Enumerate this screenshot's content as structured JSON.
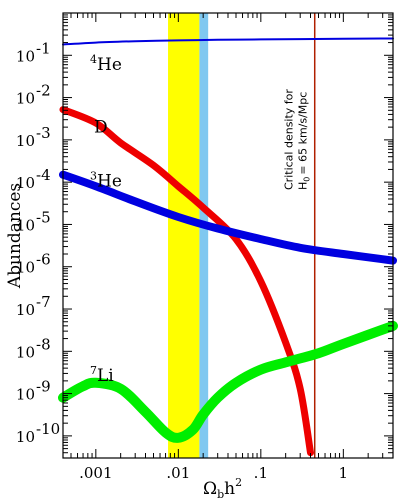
{
  "chart_data": {
    "type": "line",
    "x_scale": "log",
    "y_scale": "log",
    "xlim": [
      0.0004,
      4
    ],
    "ylim": [
      3e-11,
      1
    ],
    "xlabel": "Ω_b h²",
    "xlabel_main": "Ω",
    "xlabel_sub": "b",
    "xlabel_rest": "h",
    "xlabel_sup": "2",
    "ylabel": "Abundances",
    "xticks": [
      {
        "value": 0.001,
        "label": ".001"
      },
      {
        "value": 0.01,
        "label": ".01"
      },
      {
        "value": 0.1,
        "label": ".1"
      },
      {
        "value": 1,
        "label": "1"
      }
    ],
    "yticks": [
      {
        "value": 0.1,
        "base": "10",
        "exp": "-1"
      },
      {
        "value": 0.01,
        "base": "10",
        "exp": "-2"
      },
      {
        "value": 0.001,
        "base": "10",
        "exp": "-3"
      },
      {
        "value": 0.0001,
        "base": "10",
        "exp": "-4"
      },
      {
        "value": 1e-05,
        "base": "10",
        "exp": "-5"
      },
      {
        "value": 1e-06,
        "base": "10",
        "exp": "-6"
      },
      {
        "value": 1e-07,
        "base": "10",
        "exp": "-7"
      },
      {
        "value": 1e-08,
        "base": "10",
        "exp": "-8"
      },
      {
        "value": 1e-09,
        "base": "10",
        "exp": "-9"
      },
      {
        "value": 1e-10,
        "base": "10",
        "exp": "-10"
      }
    ],
    "bands": [
      {
        "x_range": [
          0.0075,
          0.018
        ],
        "color": "#ffff00"
      },
      {
        "x_range": [
          0.018,
          0.023
        ],
        "color": "#80c8f0"
      }
    ],
    "vline": {
      "x": 0.45,
      "color": "#b02000"
    },
    "annotation": {
      "line1": "Critical density for",
      "line2_main": "H",
      "line2_sub": "0",
      "line2_rest": "= 65 km/s/Mpc"
    },
    "series": [
      {
        "name": "He",
        "prefix": "4",
        "color": "#0000e0",
        "x": [
          0.0004,
          0.001,
          0.003,
          0.01,
          0.03,
          0.1,
          0.3,
          1,
          4
        ],
        "y": [
          0.18,
          0.2,
          0.215,
          0.225,
          0.232,
          0.237,
          0.241,
          0.246,
          0.25
        ]
      },
      {
        "name": "D",
        "prefix": "",
        "color": "#ee0000",
        "x": [
          0.0004,
          0.001,
          0.002,
          0.005,
          0.01,
          0.02,
          0.05,
          0.1,
          0.2,
          0.3,
          0.4
        ],
        "y": [
          0.0052,
          0.0025,
          0.00085,
          0.00025,
          8e-05,
          2.5e-05,
          4.5e-06,
          4.5e-07,
          1.6e-08,
          1.3e-09,
          4e-11
        ]
      },
      {
        "name": "He",
        "prefix": "3",
        "color": "#0000e0",
        "x": [
          0.0004,
          0.001,
          0.003,
          0.01,
          0.03,
          0.1,
          0.3,
          1,
          4
        ],
        "y": [
          0.00015,
          8e-05,
          3.5e-05,
          1.5e-05,
          8e-06,
          4.5e-06,
          2.8e-06,
          2e-06,
          1.4e-06
        ]
      },
      {
        "name": "Li",
        "prefix": "7",
        "color": "#00ee00",
        "x": [
          0.0004,
          0.0007,
          0.001,
          0.002,
          0.004,
          0.007,
          0.01,
          0.015,
          0.02,
          0.03,
          0.05,
          0.1,
          0.2,
          0.5,
          1,
          4
        ],
        "y": [
          8e-10,
          1.5e-09,
          1.8e-09,
          1.3e-09,
          3.7e-10,
          1.2e-10,
          9e-11,
          1.4e-10,
          3.2e-10,
          8e-10,
          1.8e-09,
          3.7e-09,
          5.5e-09,
          9e-09,
          1.5e-08,
          4e-08
        ]
      }
    ],
    "series_label_positions": [
      {
        "series": 0,
        "x": 0.00085,
        "y": 0.045
      },
      {
        "series": 1,
        "x": 0.00095,
        "y": 0.0015
      },
      {
        "series": 2,
        "x": 0.00085,
        "y": 8e-05
      },
      {
        "series": 3,
        "x": 0.00085,
        "y": 2e-09
      }
    ]
  }
}
